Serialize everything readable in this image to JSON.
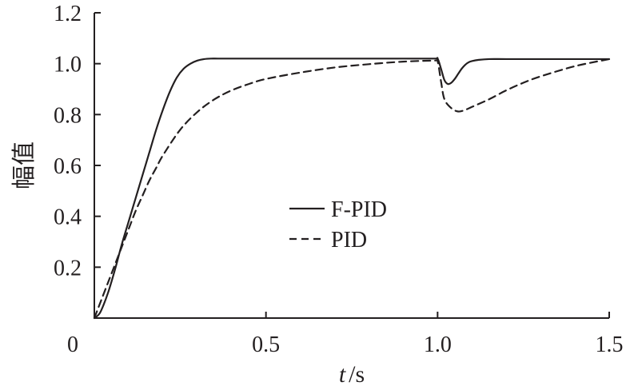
{
  "chart_data": {
    "type": "line",
    "title": "",
    "xlabel": "t /s",
    "xlabel_var": "t",
    "xlabel_unit": "/s",
    "ylabel": "幅值",
    "xlim": [
      0,
      1.5
    ],
    "ylim": [
      0,
      1.2
    ],
    "xticks": [
      0,
      0.5,
      1.0,
      1.5
    ],
    "xtick_labels": [
      "0",
      "0.5",
      "1.0",
      "1.5"
    ],
    "yticks": [
      0.2,
      0.4,
      0.6,
      0.8,
      1.0,
      1.2
    ],
    "ytick_labels": [
      "0.2",
      "0.4",
      "0.6",
      "0.8",
      "1.0",
      "1.2"
    ],
    "grid": false,
    "legend_position": "center",
    "series": [
      {
        "name": "F-PID",
        "style": "solid",
        "color": "#231f20",
        "x": [
          0,
          0.01,
          0.02,
          0.04,
          0.06,
          0.08,
          0.1,
          0.12,
          0.14,
          0.16,
          0.18,
          0.2,
          0.22,
          0.24,
          0.26,
          0.28,
          0.3,
          0.32,
          0.34,
          0.36,
          0.4,
          0.5,
          0.6,
          0.7,
          0.8,
          0.9,
          0.99,
          1.0,
          1.01,
          1.02,
          1.03,
          1.04,
          1.05,
          1.06,
          1.07,
          1.08,
          1.09,
          1.1,
          1.12,
          1.15,
          1.2,
          1.3,
          1.4,
          1.5
        ],
        "y": [
          0,
          0.01,
          0.03,
          0.1,
          0.19,
          0.29,
          0.38,
          0.47,
          0.56,
          0.65,
          0.74,
          0.82,
          0.89,
          0.945,
          0.98,
          1.0,
          1.012,
          1.018,
          1.02,
          1.02,
          1.02,
          1.02,
          1.02,
          1.02,
          1.02,
          1.02,
          1.02,
          1.02,
          0.98,
          0.935,
          0.92,
          0.925,
          0.94,
          0.96,
          0.98,
          0.995,
          1.005,
          1.01,
          1.015,
          1.018,
          1.018,
          1.018,
          1.018,
          1.018
        ]
      },
      {
        "name": "PID",
        "style": "dashed",
        "color": "#231f20",
        "x": [
          0,
          0.01,
          0.02,
          0.04,
          0.06,
          0.08,
          0.1,
          0.12,
          0.14,
          0.16,
          0.18,
          0.2,
          0.25,
          0.3,
          0.35,
          0.4,
          0.45,
          0.5,
          0.6,
          0.7,
          0.8,
          0.9,
          0.99,
          1.0,
          1.01,
          1.02,
          1.04,
          1.06,
          1.08,
          1.1,
          1.15,
          1.2,
          1.25,
          1.3,
          1.4,
          1.5
        ],
        "y": [
          0,
          0.035,
          0.07,
          0.14,
          0.21,
          0.28,
          0.35,
          0.42,
          0.48,
          0.54,
          0.59,
          0.64,
          0.74,
          0.81,
          0.86,
          0.895,
          0.92,
          0.94,
          0.965,
          0.985,
          0.998,
          1.008,
          1.012,
          1.01,
          0.93,
          0.86,
          0.825,
          0.812,
          0.818,
          0.83,
          0.86,
          0.895,
          0.925,
          0.95,
          0.99,
          1.018
        ]
      }
    ]
  }
}
